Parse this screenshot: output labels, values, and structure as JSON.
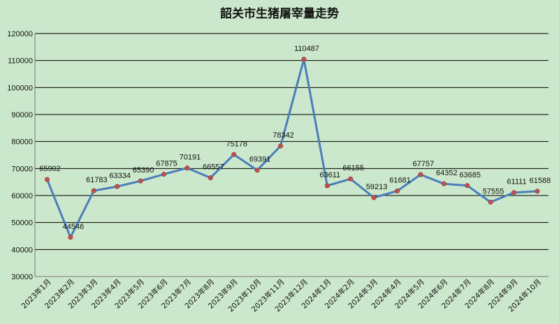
{
  "chart_data": {
    "type": "line",
    "title": "韶关市生猪屠宰量走势",
    "xlabel": "",
    "ylabel": "",
    "ylim": [
      30000,
      120000
    ],
    "y_ticks": [
      30000,
      40000,
      50000,
      60000,
      70000,
      80000,
      90000,
      100000,
      110000,
      120000
    ],
    "grid": true,
    "legend": "none",
    "categories": [
      "2023年1月",
      "2023年2月",
      "2023年3月",
      "2023年4月",
      "2023年5月",
      "2023年6月",
      "2023年7月",
      "2023年8月",
      "2023年9月",
      "2023年10月",
      "2023年11月",
      "2023年12月",
      "2024年1月",
      "2024年2月",
      "2024年3月",
      "2024年4月",
      "2024年5月",
      "2024年6月",
      "2024年7月",
      "2024年8月",
      "2024年9月",
      "2024年10月"
    ],
    "series": [
      {
        "values": [
          65902,
          44546,
          61783,
          63334,
          65390,
          67875,
          70191,
          66557,
          75178,
          69391,
          78342,
          110487,
          63611,
          66155,
          59213,
          61681,
          67757,
          64352,
          63685,
          57555,
          61111,
          61588
        ]
      }
    ],
    "colors": {
      "line": "#4a7ebb",
      "marker": "#c0504d",
      "background": "#cce8cc",
      "grid": "#000000"
    }
  }
}
